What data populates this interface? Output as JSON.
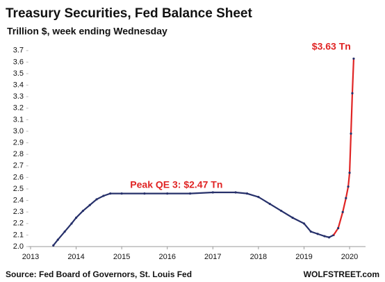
{
  "chart_data": {
    "type": "line",
    "title": "Treasury Securities, Fed Balance Sheet",
    "subtitle": "Trillion $, week ending Wednesday",
    "source": "Source: Fed Board of Governors, St. Louis Fed",
    "brand": "WOLFSTREET.com",
    "annotations": [
      {
        "text": "Peak QE 3: $2.47 Tn",
        "x": 2016.2,
        "y": 2.53
      },
      {
        "text": "$3.63 Tn",
        "x": 2019.6,
        "y": 3.73
      }
    ],
    "annotation_color": "#e02424",
    "series": [
      {
        "color": "#26306a",
        "x": [
          2013.5,
          2013.6,
          2013.75,
          2013.9,
          2014.0,
          2014.15,
          2014.3,
          2014.45,
          2014.6,
          2014.75,
          2015.0,
          2015.5,
          2016.0,
          2016.5,
          2017.0,
          2017.5,
          2017.75,
          2018.0,
          2018.25,
          2018.5,
          2018.75,
          2019.0,
          2019.15,
          2019.3,
          2019.45,
          2019.55,
          2019.65
        ],
        "values": [
          2.01,
          2.06,
          2.13,
          2.2,
          2.25,
          2.31,
          2.36,
          2.41,
          2.44,
          2.46,
          2.46,
          2.46,
          2.46,
          2.46,
          2.47,
          2.47,
          2.46,
          2.43,
          2.37,
          2.31,
          2.25,
          2.2,
          2.13,
          2.11,
          2.09,
          2.08,
          2.1
        ]
      },
      {
        "color": "#e02424",
        "x": [
          2019.75,
          2019.85,
          2019.92,
          2019.97,
          2020.0,
          2020.03,
          2020.06,
          2020.09
        ],
        "values": [
          2.16,
          2.3,
          2.42,
          2.52,
          2.64,
          2.98,
          3.33,
          3.63
        ]
      }
    ],
    "xlim": [
      2012.95,
      2020.35
    ],
    "xticks": [
      2013,
      2014,
      2015,
      2016,
      2017,
      2018,
      2019,
      2020
    ],
    "ylim": [
      2.0,
      3.75
    ],
    "yticks": [
      2.0,
      2.1,
      2.2,
      2.3,
      2.4,
      2.5,
      2.6,
      2.7,
      2.8,
      2.9,
      3.0,
      3.1,
      3.2,
      3.3,
      3.4,
      3.5,
      3.6,
      3.7
    ]
  }
}
